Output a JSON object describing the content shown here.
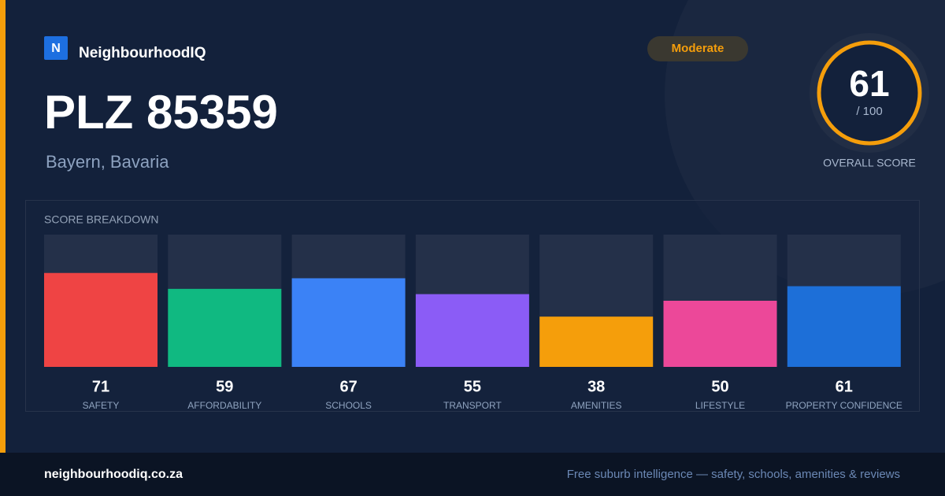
{
  "brand": "NeighbourhoodIQ",
  "logo_letter": "N",
  "title": "PLZ 85359",
  "subtitle": "Bayern, Bavaria",
  "badge": "Moderate",
  "score": 61,
  "score_max_label": "/ 100",
  "score_label": "OVERALL SCORE",
  "footer": {
    "site": "neighbourhoodiq.co.za",
    "tagline": "Free suburb intelligence — safety, schools, amenities & reviews"
  },
  "chart_data": {
    "type": "bar",
    "title": "SCORE BREAKDOWN",
    "categories": [
      "SAFETY",
      "AFFORDABILITY",
      "SCHOOLS",
      "TRANSPORT",
      "AMENITIES",
      "LIFESTYLE",
      "PROPERTY CONFIDENCE"
    ],
    "values": [
      71,
      59,
      67,
      55,
      38,
      50,
      61
    ],
    "colors": [
      "#ef4444",
      "#10b981",
      "#3b82f6",
      "#8b5cf6",
      "#f59e0b",
      "#ec4899",
      "#1d6fd8"
    ],
    "ylim": [
      0,
      100
    ]
  }
}
